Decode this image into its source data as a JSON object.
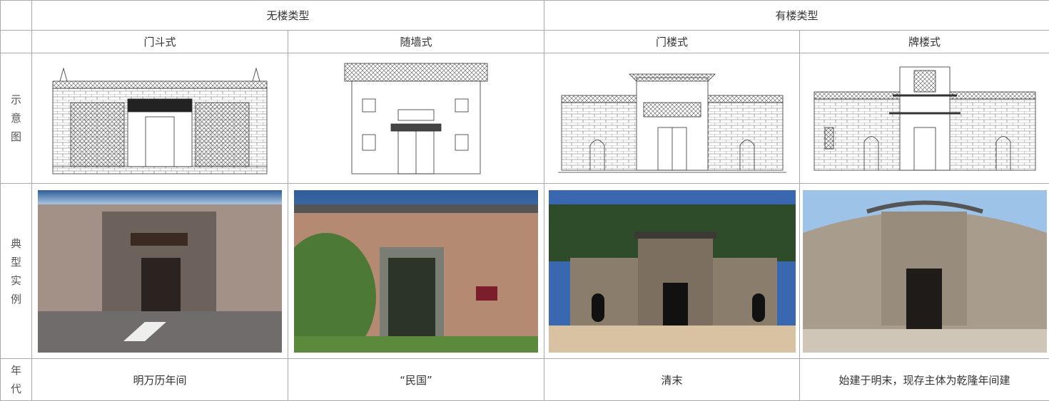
{
  "header": {
    "groups": [
      "无楼类型",
      "有楼类型"
    ],
    "types": [
      "门斗式",
      "随墙式",
      "门楼式",
      "牌楼式"
    ]
  },
  "rows": [
    {
      "label": "示意图"
    },
    {
      "label": "典型实例"
    },
    {
      "label": "年代",
      "cells": [
        "明万历年间",
        "“民国”",
        "清末",
        "始建于明末，现存主体为乾隆年间建"
      ]
    }
  ]
}
